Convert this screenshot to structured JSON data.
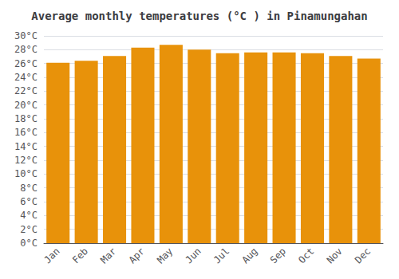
{
  "chart_data": {
    "type": "bar",
    "title": "Average monthly temperatures (°C ) in Pinamungahan",
    "categories": [
      "Jan",
      "Feb",
      "Mar",
      "Apr",
      "May",
      "Jun",
      "Jul",
      "Aug",
      "Sep",
      "Oct",
      "Nov",
      "Dec"
    ],
    "values": [
      26.1,
      26.4,
      27.1,
      28.3,
      28.7,
      28.0,
      27.5,
      27.6,
      27.6,
      27.5,
      27.1,
      26.7
    ],
    "color": "#E8920A",
    "ylim": [
      0,
      30
    ],
    "yticks": [
      {
        "value": 0,
        "label": "0°C"
      },
      {
        "value": 2,
        "label": "2°C"
      },
      {
        "value": 4,
        "label": "4°C"
      },
      {
        "value": 6,
        "label": "6°C"
      },
      {
        "value": 8,
        "label": "8°C"
      },
      {
        "value": 10,
        "label": "10°C"
      },
      {
        "value": 12,
        "label": "12°C"
      },
      {
        "value": 14,
        "label": "14°C"
      },
      {
        "value": 16,
        "label": "16°C"
      },
      {
        "value": 18,
        "label": "18°C"
      },
      {
        "value": 20,
        "label": "20°C"
      },
      {
        "value": 22,
        "label": "22°C"
      },
      {
        "value": 24,
        "label": "24°C"
      },
      {
        "value": 26,
        "label": "26°C"
      },
      {
        "value": 28,
        "label": "28°C"
      },
      {
        "value": 30,
        "label": "30°C"
      }
    ],
    "grid": true
  }
}
